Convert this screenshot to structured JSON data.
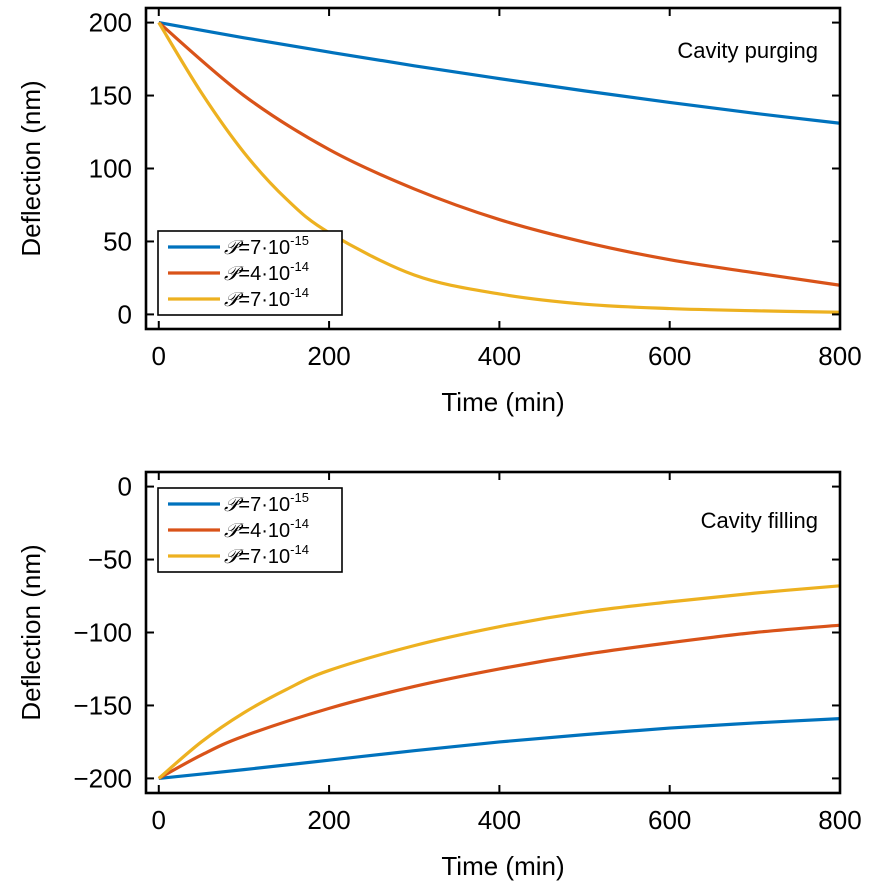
{
  "chart_data": [
    {
      "type": "line",
      "annotation": "Cavity purging",
      "xlabel": "Time (min)",
      "ylabel": "Deflection (nm)",
      "xlim": [
        -15,
        800
      ],
      "ylim": [
        -10,
        210
      ],
      "xticks": [
        0,
        200,
        400,
        600,
        800
      ],
      "yticks": [
        0,
        50,
        100,
        150,
        200
      ],
      "grid": false,
      "legend_position": "bottom-left",
      "series": [
        {
          "name": "𝒫=7·10⁻¹⁵",
          "label_symbol": "𝒫",
          "label_value": "=7·10",
          "label_exponent": "-15",
          "color": "#0072BD",
          "x": [
            0,
            100,
            200,
            300,
            400,
            500,
            600,
            700,
            800
          ],
          "y": [
            200,
            189.6,
            179.8,
            170.4,
            161.6,
            153.2,
            145.3,
            137.8,
            131
          ]
        },
        {
          "name": "𝒫=4·10⁻¹⁴",
          "label_symbol": "𝒫",
          "label_value": "=4·10",
          "label_exponent": "-14",
          "color": "#D95319",
          "x": [
            0,
            100,
            200,
            300,
            400,
            500,
            600,
            700,
            800
          ],
          "y": [
            200,
            150,
            113,
            86,
            65,
            49.5,
            37.5,
            28.5,
            20
          ]
        },
        {
          "name": "𝒫=7·10⁻¹⁴",
          "label_symbol": "𝒫",
          "label_value": "=7·10",
          "label_exponent": "-14",
          "color": "#EDB120",
          "x": [
            0,
            50,
            100,
            150,
            200,
            300,
            400,
            500,
            600,
            700,
            800
          ],
          "y": [
            200,
            152,
            111,
            79,
            56,
            27,
            14,
            7,
            4,
            2.5,
            1.5
          ]
        }
      ]
    },
    {
      "type": "line",
      "annotation": "Cavity filling",
      "xlabel": "Time (min)",
      "ylabel": "Deflection (nm)",
      "xlim": [
        -15,
        800
      ],
      "ylim": [
        -210,
        10
      ],
      "xticks": [
        0,
        200,
        400,
        600,
        800
      ],
      "yticks": [
        0,
        -50,
        -100,
        -150,
        -200
      ],
      "ytick_labels": [
        "0",
        "−50",
        "−100",
        "−150",
        "−200"
      ],
      "grid": false,
      "legend_position": "top-left",
      "series": [
        {
          "name": "𝒫=7·10⁻¹⁵",
          "label_symbol": "𝒫",
          "label_value": "=7·10",
          "label_exponent": "-15",
          "color": "#0072BD",
          "x": [
            0,
            100,
            200,
            300,
            400,
            500,
            600,
            700,
            800
          ],
          "y": [
            -200,
            -194,
            -187.5,
            -181,
            -175,
            -170,
            -165.5,
            -162,
            -159
          ]
        },
        {
          "name": "𝒫=4·10⁻¹⁴",
          "label_symbol": "𝒫",
          "label_value": "=4·10",
          "label_exponent": "-14",
          "color": "#D95319",
          "x": [
            0,
            50,
            100,
            200,
            300,
            400,
            500,
            600,
            700,
            800
          ],
          "y": [
            -200,
            -184,
            -171,
            -152,
            -137,
            -125,
            -115,
            -107,
            -100,
            -95
          ]
        },
        {
          "name": "𝒫=7·10⁻¹⁴",
          "label_symbol": "𝒫",
          "label_value": "=7·10",
          "label_exponent": "-14",
          "color": "#EDB120",
          "x": [
            0,
            50,
            100,
            150,
            200,
            300,
            400,
            500,
            600,
            700,
            800
          ],
          "y": [
            -200,
            -175,
            -155,
            -139,
            -126,
            -109,
            -96,
            -86,
            -79,
            -73,
            -68
          ]
        }
      ]
    }
  ]
}
